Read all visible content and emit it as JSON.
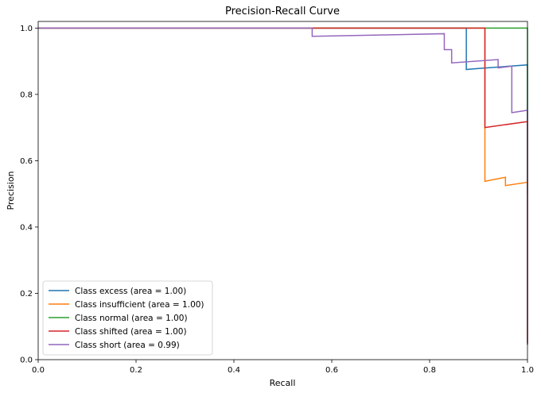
{
  "chart_data": {
    "type": "line",
    "title": "Precision-Recall Curve",
    "xlabel": "Recall",
    "ylabel": "Precision",
    "xlim": [
      0,
      1
    ],
    "ylim": [
      0,
      1.02
    ],
    "xticks": [
      0.0,
      0.2,
      0.4,
      0.6,
      0.8,
      1.0
    ],
    "yticks": [
      0.0,
      0.2,
      0.4,
      0.6,
      0.8,
      1.0
    ],
    "xtick_labels": [
      "0.0",
      "0.2",
      "0.4",
      "0.6",
      "0.8",
      "1.0"
    ],
    "ytick_labels": [
      "0.0",
      "0.2",
      "0.4",
      "0.6",
      "0.8",
      "1.0"
    ],
    "grid": false,
    "legend_position": "lower-left",
    "series": [
      {
        "name": "Class excess (area = 1.00)",
        "color": "#1f77b4",
        "x": [
          0.0,
          0.875,
          0.875,
          0.9,
          1.0,
          1.0
        ],
        "y": [
          1.0,
          1.0,
          0.875,
          0.878,
          0.889,
          0.045
        ]
      },
      {
        "name": "Class insufficient (area = 1.00)",
        "color": "#ff7f0e",
        "x": [
          0.0,
          0.913,
          0.913,
          0.955,
          0.955,
          1.0,
          1.0
        ],
        "y": [
          1.0,
          1.0,
          0.538,
          0.55,
          0.525,
          0.535,
          0.1
        ]
      },
      {
        "name": "Class normal (area = 1.00)",
        "color": "#2ca02c",
        "x": [
          0.0,
          1.0,
          1.0
        ],
        "y": [
          1.0,
          1.0,
          0.5
        ]
      },
      {
        "name": "Class shifted (area = 1.00)",
        "color": "#d62728",
        "x": [
          0.0,
          0.56,
          0.56,
          0.913,
          0.913,
          1.0,
          1.0
        ],
        "y": [
          1.0,
          1.0,
          1.0,
          1.0,
          0.7,
          0.718,
          0.05
        ]
      },
      {
        "name": "Class short (area = 0.99)",
        "color": "#9467bd",
        "x": [
          0.0,
          0.56,
          0.56,
          0.83,
          0.83,
          0.845,
          0.845,
          0.94,
          0.94,
          0.968,
          0.968,
          1.0,
          1.0
        ],
        "y": [
          1.0,
          1.0,
          0.975,
          0.983,
          0.935,
          0.935,
          0.895,
          0.905,
          0.88,
          0.885,
          0.745,
          0.752,
          0.1
        ]
      }
    ]
  }
}
